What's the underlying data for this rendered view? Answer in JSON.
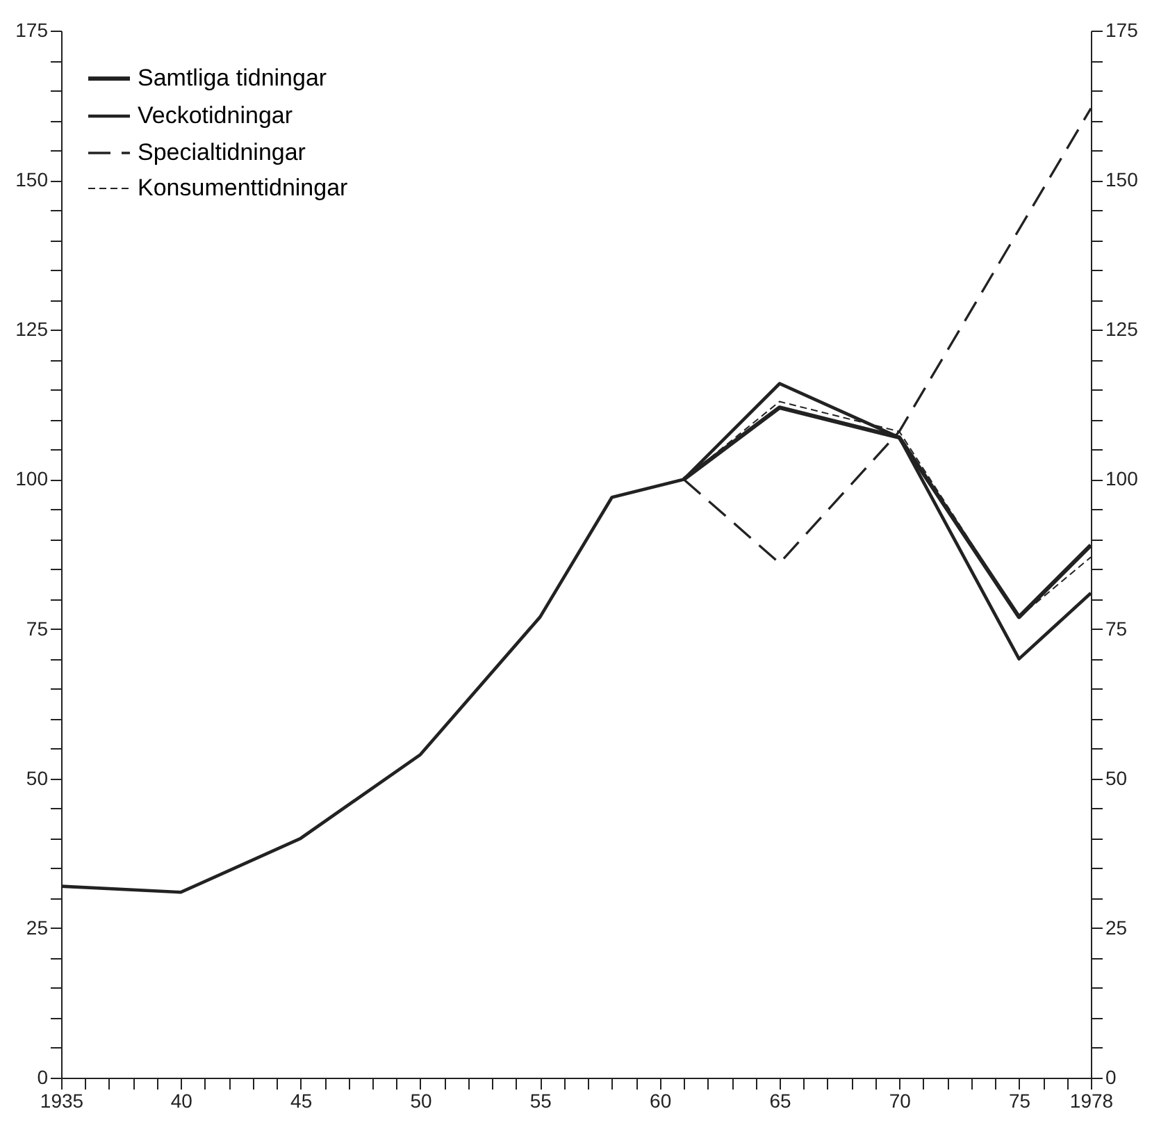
{
  "chart_data": {
    "type": "line",
    "xlim": [
      1935,
      1978
    ],
    "xticks": [
      {
        "value": 1935,
        "label": "1935"
      },
      {
        "value": 1936,
        "label": null
      },
      {
        "value": 1937,
        "label": null
      },
      {
        "value": 1938,
        "label": null
      },
      {
        "value": 1939,
        "label": null
      },
      {
        "value": 1940,
        "label": "40"
      },
      {
        "value": 1941,
        "label": null
      },
      {
        "value": 1942,
        "label": null
      },
      {
        "value": 1943,
        "label": null
      },
      {
        "value": 1944,
        "label": null
      },
      {
        "value": 1945,
        "label": "45"
      },
      {
        "value": 1946,
        "label": null
      },
      {
        "value": 1947,
        "label": null
      },
      {
        "value": 1948,
        "label": null
      },
      {
        "value": 1949,
        "label": null
      },
      {
        "value": 1950,
        "label": "50"
      },
      {
        "value": 1951,
        "label": null
      },
      {
        "value": 1952,
        "label": null
      },
      {
        "value": 1953,
        "label": null
      },
      {
        "value": 1954,
        "label": null
      },
      {
        "value": 1955,
        "label": "55"
      },
      {
        "value": 1956,
        "label": null
      },
      {
        "value": 1957,
        "label": null
      },
      {
        "value": 1958,
        "label": null
      },
      {
        "value": 1959,
        "label": null
      },
      {
        "value": 1960,
        "label": "60"
      },
      {
        "value": 1961,
        "label": null
      },
      {
        "value": 1962,
        "label": null
      },
      {
        "value": 1963,
        "label": null
      },
      {
        "value": 1964,
        "label": null
      },
      {
        "value": 1965,
        "label": "65"
      },
      {
        "value": 1966,
        "label": null
      },
      {
        "value": 1967,
        "label": null
      },
      {
        "value": 1968,
        "label": null
      },
      {
        "value": 1969,
        "label": null
      },
      {
        "value": 1970,
        "label": "70"
      },
      {
        "value": 1971,
        "label": null
      },
      {
        "value": 1972,
        "label": null
      },
      {
        "value": 1973,
        "label": null
      },
      {
        "value": 1974,
        "label": null
      },
      {
        "value": 1975,
        "label": "75"
      },
      {
        "value": 1976,
        "label": null
      },
      {
        "value": 1977,
        "label": null
      },
      {
        "value": 1978,
        "label": "1978"
      }
    ],
    "ylim": [
      0,
      175
    ],
    "yticks": [
      0,
      {
        "value": 5,
        "label": null
      },
      {
        "value": 10,
        "label": null
      },
      {
        "value": 15,
        "label": null
      },
      {
        "value": 20,
        "label": null
      },
      25,
      {
        "value": 30,
        "label": null
      },
      {
        "value": 35,
        "label": null
      },
      {
        "value": 40,
        "label": null
      },
      {
        "value": 45,
        "label": null
      },
      50,
      {
        "value": 55,
        "label": null
      },
      {
        "value": 60,
        "label": null
      },
      {
        "value": 65,
        "label": null
      },
      {
        "value": 70,
        "label": null
      },
      75,
      {
        "value": 80,
        "label": null
      },
      {
        "value": 85,
        "label": null
      },
      {
        "value": 90,
        "label": null
      },
      {
        "value": 95,
        "label": null
      },
      100,
      {
        "value": 105,
        "label": null
      },
      {
        "value": 110,
        "label": null
      },
      {
        "value": 115,
        "label": null
      },
      {
        "value": 120,
        "label": null
      },
      125,
      {
        "value": 130,
        "label": null
      },
      {
        "value": 135,
        "label": null
      },
      {
        "value": 140,
        "label": null
      },
      {
        "value": 145,
        "label": null
      },
      150,
      {
        "value": 155,
        "label": null
      },
      {
        "value": 160,
        "label": null
      },
      {
        "value": 165,
        "label": null
      },
      {
        "value": 170,
        "label": null
      },
      175
    ],
    "y2lim": [
      0,
      175
    ],
    "y2ticks": [
      0,
      {
        "value": 5,
        "label": null
      },
      {
        "value": 10,
        "label": null
      },
      {
        "value": 15,
        "label": null
      },
      {
        "value": 20,
        "label": null
      },
      25,
      {
        "value": 30,
        "label": null
      },
      {
        "value": 35,
        "label": null
      },
      {
        "value": 40,
        "label": null
      },
      {
        "value": 45,
        "label": null
      },
      50,
      {
        "value": 55,
        "label": null
      },
      {
        "value": 60,
        "label": null
      },
      {
        "value": 65,
        "label": null
      },
      {
        "value": 70,
        "label": null
      },
      75,
      {
        "value": 80,
        "label": null
      },
      {
        "value": 85,
        "label": null
      },
      {
        "value": 90,
        "label": null
      },
      {
        "value": 95,
        "label": null
      },
      100,
      {
        "value": 105,
        "label": null
      },
      {
        "value": 110,
        "label": null
      },
      {
        "value": 115,
        "label": null
      },
      {
        "value": 120,
        "label": null
      },
      125,
      {
        "value": 130,
        "label": null
      },
      {
        "value": 135,
        "label": null
      },
      {
        "value": 140,
        "label": null
      },
      {
        "value": 145,
        "label": null
      },
      150,
      {
        "value": 155,
        "label": null
      },
      {
        "value": 160,
        "label": null
      },
      {
        "value": 165,
        "label": null
      },
      {
        "value": 170,
        "label": null
      },
      175
    ],
    "grid": false,
    "legend": "top left",
    "marker": "none",
    "series": [
      {
        "name": "Samtliga tidningar",
        "color": "#222222",
        "line_style": "solid",
        "x": [
          1961,
          1965,
          1970,
          1975,
          1978
        ],
        "values": [
          100,
          112,
          107,
          77,
          89
        ]
      },
      {
        "name": "Veckotidningar",
        "color": "#222222",
        "line_style": "solid",
        "x": [
          1935,
          1940,
          1945,
          1950,
          1955,
          1958,
          1961,
          1965,
          1970,
          1975,
          1978
        ],
        "values": [
          32,
          31,
          40,
          54,
          77,
          97,
          100,
          116,
          107,
          70,
          81
        ]
      },
      {
        "name": "Specialtidningar",
        "color": "#222222",
        "line_style": "dashed",
        "x": [
          1961,
          1965,
          1970,
          1978
        ],
        "values": [
          100,
          86,
          108,
          162
        ]
      },
      {
        "name": "Konsumenttidningar",
        "color": "#222222",
        "line_style": "dotted",
        "x": [
          1961,
          1965,
          1970,
          1975,
          1978
        ],
        "values": [
          100,
          113,
          108,
          77,
          87
        ]
      }
    ]
  }
}
